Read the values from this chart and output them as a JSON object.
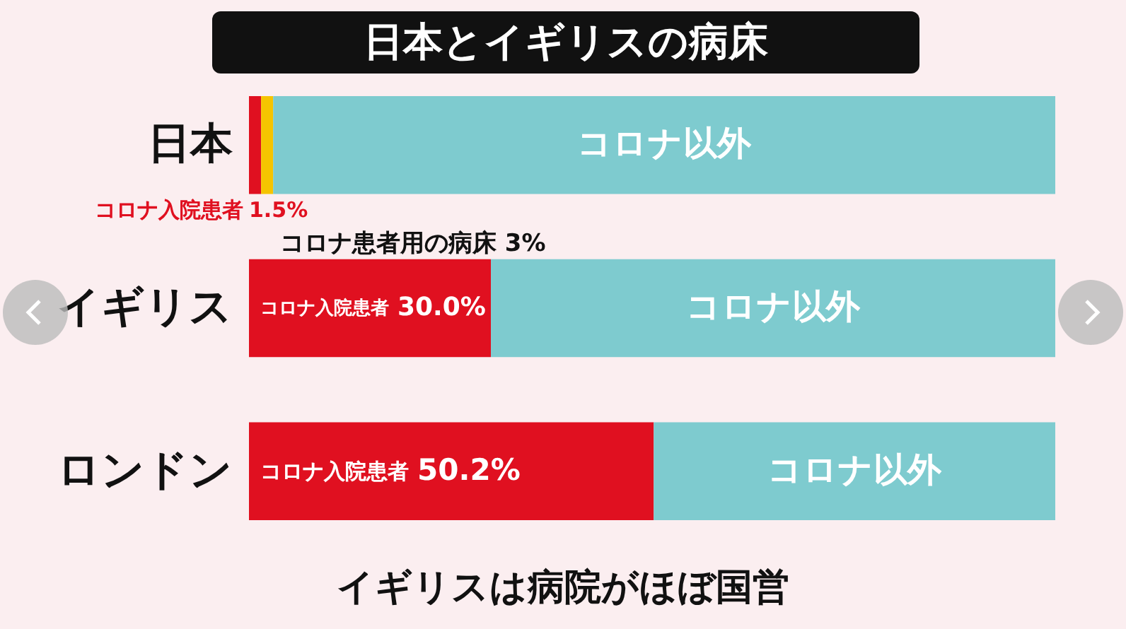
{
  "chart_data": {
    "type": "bar",
    "title": "日本とイギリスの病床",
    "orientation": "horizontal",
    "stacked": true,
    "categories": [
      "日本",
      "イギリス",
      "ロンドン"
    ],
    "series": [
      {
        "name": "コロナ入院患者",
        "color": "#e01020",
        "values": [
          1.5,
          30.0,
          50.2
        ],
        "value_labels": [
          "1.5%",
          "30.0%",
          "50.2%"
        ]
      },
      {
        "color": "#f5c400",
        "values": [
          1.5,
          null,
          null
        ]
      },
      {
        "name": "コロナ以外",
        "color": "#7ecbcf",
        "values": [
          97,
          70,
          49.8
        ]
      }
    ],
    "annotations": [
      "コロナ患者用の病床 3%",
      "イギリスは病院がほぼ国営"
    ]
  }
}
